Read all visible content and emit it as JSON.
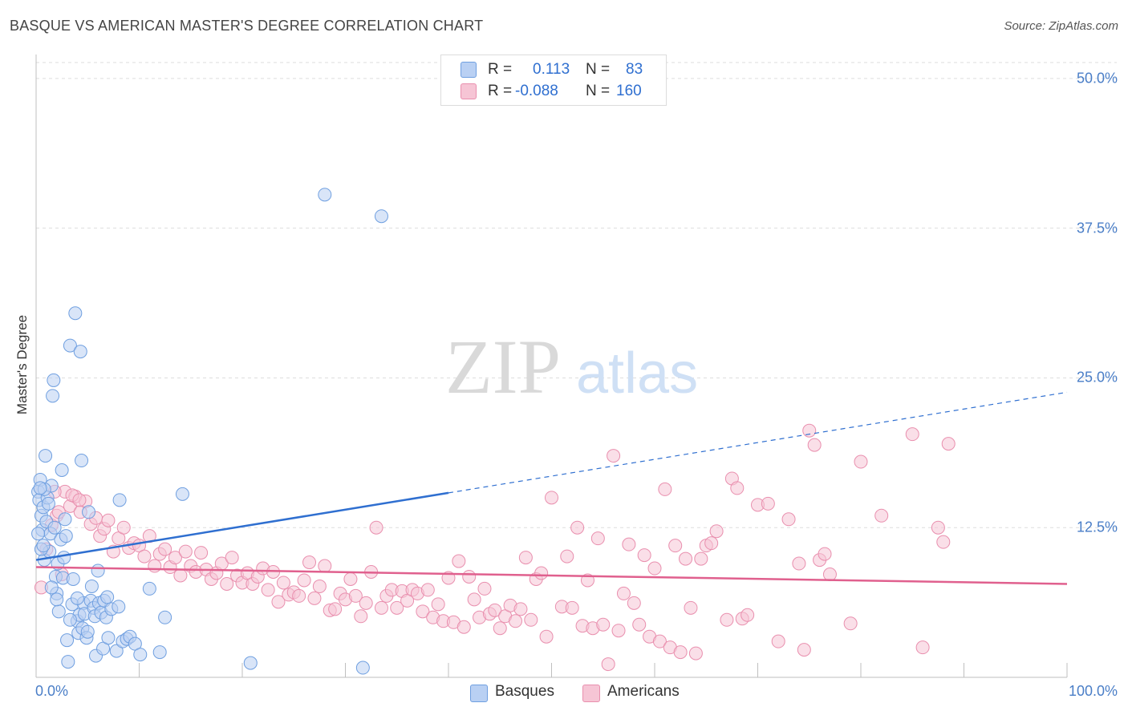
{
  "title": "BASQUE VS AMERICAN MASTER'S DEGREE CORRELATION CHART",
  "source": "Source: ZipAtlas.com",
  "watermark": {
    "zip": "ZIP",
    "atlas": "atlas"
  },
  "chart_data": {
    "type": "scatter",
    "xlabel": "",
    "ylabel": "Master's Degree",
    "xlim": [
      0,
      100
    ],
    "ylim": [
      0,
      52
    ],
    "x_tick_labels": [
      {
        "value": 0,
        "label": "0.0%"
      },
      {
        "value": 100,
        "label": "100.0%"
      }
    ],
    "y_tick_labels": [
      {
        "value": 12.5,
        "label": "12.5%"
      },
      {
        "value": 25,
        "label": "25.0%"
      },
      {
        "value": 37.5,
        "label": "37.5%"
      },
      {
        "value": 50,
        "label": "50.0%"
      }
    ],
    "grid": true,
    "legend_position": "top-center",
    "series": [
      {
        "name": "Basques",
        "color": "#6f9fe0",
        "fill": "#b9d0f3",
        "R": "0.113",
        "N": "83",
        "trend": {
          "x0": 0,
          "y0": 9.8,
          "x1": 40,
          "y1": 15.4,
          "x_end": 100,
          "y_end": 23.8
        },
        "points": [
          [
            0.2,
            15.5
          ],
          [
            0.3,
            14.8
          ],
          [
            0.4,
            16.5
          ],
          [
            0.5,
            13.5
          ],
          [
            0.6,
            12.3
          ],
          [
            0.7,
            14.2
          ],
          [
            0.8,
            9.8
          ],
          [
            0.9,
            18.5
          ],
          [
            1.0,
            13.0
          ],
          [
            1.1,
            15.0
          ],
          [
            1.2,
            14.5
          ],
          [
            1.3,
            10.5
          ],
          [
            1.4,
            12.0
          ],
          [
            1.5,
            16.0
          ],
          [
            1.6,
            23.5
          ],
          [
            1.7,
            24.8
          ],
          [
            1.8,
            12.5
          ],
          [
            1.9,
            8.4
          ],
          [
            2.0,
            7.0
          ],
          [
            2.1,
            9.5
          ],
          [
            2.2,
            5.5
          ],
          [
            2.4,
            11.5
          ],
          [
            2.5,
            17.3
          ],
          [
            2.6,
            8.3
          ],
          [
            2.7,
            10.0
          ],
          [
            2.8,
            13.2
          ],
          [
            2.9,
            11.8
          ],
          [
            3.0,
            3.1
          ],
          [
            3.1,
            1.3
          ],
          [
            3.3,
            27.7
          ],
          [
            3.5,
            6.1
          ],
          [
            3.6,
            8.2
          ],
          [
            3.8,
            30.4
          ],
          [
            4.0,
            4.7
          ],
          [
            4.1,
            3.7
          ],
          [
            4.2,
            5.2
          ],
          [
            4.3,
            27.2
          ],
          [
            4.4,
            18.1
          ],
          [
            4.5,
            4.1
          ],
          [
            4.6,
            6.2
          ],
          [
            4.7,
            5.3
          ],
          [
            4.9,
            3.3
          ],
          [
            5.0,
            3.8
          ],
          [
            5.1,
            13.8
          ],
          [
            5.3,
            6.4
          ],
          [
            5.4,
            7.6
          ],
          [
            5.6,
            5.8
          ],
          [
            5.7,
            5.1
          ],
          [
            5.8,
            1.8
          ],
          [
            6.0,
            8.9
          ],
          [
            6.1,
            6.2
          ],
          [
            6.3,
            5.4
          ],
          [
            6.5,
            2.4
          ],
          [
            6.6,
            6.4
          ],
          [
            6.8,
            5.0
          ],
          [
            6.9,
            6.7
          ],
          [
            7.0,
            3.3
          ],
          [
            7.3,
            5.7
          ],
          [
            7.8,
            2.2
          ],
          [
            8.0,
            5.9
          ],
          [
            8.1,
            14.8
          ],
          [
            8.4,
            3.0
          ],
          [
            8.8,
            3.2
          ],
          [
            9.1,
            3.4
          ],
          [
            9.6,
            2.8
          ],
          [
            10.1,
            1.9
          ],
          [
            11.0,
            7.4
          ],
          [
            12.0,
            2.1
          ],
          [
            12.5,
            5.0
          ],
          [
            14.2,
            15.3
          ],
          [
            20.8,
            1.2
          ],
          [
            28.0,
            40.3
          ],
          [
            31.7,
            0.8
          ],
          [
            33.5,
            38.5
          ],
          [
            0.2,
            12.0
          ],
          [
            0.5,
            10.7
          ],
          [
            0.8,
            15.7
          ],
          [
            1.5,
            7.5
          ],
          [
            2.0,
            6.5
          ],
          [
            3.3,
            4.8
          ],
          [
            4.0,
            6.6
          ],
          [
            0.4,
            15.8
          ],
          [
            0.7,
            11.0
          ]
        ]
      },
      {
        "name": "Americans",
        "color": "#e98fae",
        "fill": "#f6c5d5",
        "R": "-0.088",
        "N": "160",
        "trend": {
          "x0": 0,
          "y0": 9.2,
          "x1": 100,
          "y1": 7.8
        },
        "points": [
          [
            0.5,
            7.5
          ],
          [
            1.0,
            10.7
          ],
          [
            1.5,
            12.7
          ],
          [
            2.0,
            13.5
          ],
          [
            2.5,
            8.6
          ],
          [
            2.8,
            15.5
          ],
          [
            3.3,
            14.3
          ],
          [
            3.8,
            15.1
          ],
          [
            4.3,
            13.8
          ],
          [
            4.8,
            14.7
          ],
          [
            5.3,
            12.8
          ],
          [
            5.8,
            13.3
          ],
          [
            6.2,
            11.8
          ],
          [
            6.6,
            12.4
          ],
          [
            7.0,
            13.1
          ],
          [
            7.5,
            10.5
          ],
          [
            8.0,
            11.6
          ],
          [
            8.5,
            12.5
          ],
          [
            9.0,
            10.8
          ],
          [
            9.5,
            11.2
          ],
          [
            10.0,
            11.0
          ],
          [
            10.5,
            10.1
          ],
          [
            11.0,
            11.8
          ],
          [
            11.5,
            9.3
          ],
          [
            12.0,
            10.3
          ],
          [
            12.5,
            10.7
          ],
          [
            13.0,
            9.2
          ],
          [
            13.5,
            10.0
          ],
          [
            14.0,
            8.5
          ],
          [
            14.5,
            10.5
          ],
          [
            15.0,
            9.3
          ],
          [
            15.5,
            8.8
          ],
          [
            16.0,
            10.4
          ],
          [
            16.5,
            9.0
          ],
          [
            17.0,
            8.2
          ],
          [
            17.5,
            8.7
          ],
          [
            18.0,
            9.5
          ],
          [
            18.5,
            7.8
          ],
          [
            19.0,
            10.0
          ],
          [
            19.5,
            8.5
          ],
          [
            20.0,
            7.9
          ],
          [
            20.5,
            8.7
          ],
          [
            21.0,
            7.8
          ],
          [
            21.5,
            8.4
          ],
          [
            22.0,
            9.1
          ],
          [
            22.5,
            7.3
          ],
          [
            23.0,
            8.8
          ],
          [
            23.5,
            6.3
          ],
          [
            24.0,
            7.9
          ],
          [
            24.5,
            6.9
          ],
          [
            25.0,
            7.1
          ],
          [
            25.5,
            6.8
          ],
          [
            26.0,
            8.1
          ],
          [
            26.5,
            9.6
          ],
          [
            27.0,
            6.6
          ],
          [
            27.5,
            7.6
          ],
          [
            28.0,
            9.3
          ],
          [
            28.5,
            5.6
          ],
          [
            29.0,
            5.7
          ],
          [
            29.5,
            7.0
          ],
          [
            30.0,
            6.5
          ],
          [
            30.5,
            8.2
          ],
          [
            31.0,
            6.8
          ],
          [
            31.5,
            5.1
          ],
          [
            32.0,
            6.2
          ],
          [
            32.5,
            8.8
          ],
          [
            33.0,
            12.5
          ],
          [
            33.5,
            5.8
          ],
          [
            34.0,
            6.8
          ],
          [
            34.5,
            7.3
          ],
          [
            35.0,
            5.8
          ],
          [
            35.5,
            7.2
          ],
          [
            36.0,
            6.4
          ],
          [
            36.5,
            7.3
          ],
          [
            37.0,
            7.0
          ],
          [
            37.5,
            5.5
          ],
          [
            38.0,
            7.3
          ],
          [
            38.5,
            5.0
          ],
          [
            39.0,
            6.1
          ],
          [
            39.5,
            4.7
          ],
          [
            40.0,
            8.3
          ],
          [
            40.5,
            4.6
          ],
          [
            41.0,
            9.7
          ],
          [
            41.5,
            4.2
          ],
          [
            42.0,
            8.4
          ],
          [
            42.5,
            6.5
          ],
          [
            43.0,
            5.0
          ],
          [
            43.5,
            7.4
          ],
          [
            44.0,
            5.3
          ],
          [
            44.5,
            5.6
          ],
          [
            45.0,
            4.1
          ],
          [
            45.5,
            5.1
          ],
          [
            46.0,
            6.0
          ],
          [
            46.5,
            4.7
          ],
          [
            47.0,
            5.7
          ],
          [
            47.5,
            10.0
          ],
          [
            48.0,
            4.8
          ],
          [
            48.5,
            8.2
          ],
          [
            49.0,
            8.7
          ],
          [
            49.5,
            3.4
          ],
          [
            50.0,
            15.0
          ],
          [
            51.0,
            5.9
          ],
          [
            51.5,
            10.1
          ],
          [
            52.0,
            5.8
          ],
          [
            52.5,
            12.5
          ],
          [
            53.0,
            4.3
          ],
          [
            53.5,
            8.1
          ],
          [
            54.0,
            4.1
          ],
          [
            54.5,
            11.6
          ],
          [
            55.0,
            4.4
          ],
          [
            55.5,
            1.1
          ],
          [
            56.0,
            18.5
          ],
          [
            56.5,
            3.9
          ],
          [
            57.0,
            7.0
          ],
          [
            57.5,
            11.1
          ],
          [
            58.0,
            6.2
          ],
          [
            58.5,
            4.4
          ],
          [
            59.0,
            10.2
          ],
          [
            59.5,
            3.4
          ],
          [
            60.0,
            9.1
          ],
          [
            60.5,
            3.0
          ],
          [
            61.0,
            15.7
          ],
          [
            61.5,
            2.5
          ],
          [
            62.0,
            11.0
          ],
          [
            62.5,
            2.1
          ],
          [
            63.0,
            9.9
          ],
          [
            63.5,
            5.8
          ],
          [
            64.0,
            2.0
          ],
          [
            64.5,
            9.9
          ],
          [
            65.0,
            11.0
          ],
          [
            65.5,
            11.2
          ],
          [
            66.0,
            12.2
          ],
          [
            67.0,
            4.8
          ],
          [
            67.5,
            16.6
          ],
          [
            68.0,
            15.8
          ],
          [
            68.5,
            4.9
          ],
          [
            69.0,
            5.2
          ],
          [
            70.0,
            14.4
          ],
          [
            71.0,
            14.5
          ],
          [
            72.0,
            3.0
          ],
          [
            73.0,
            13.2
          ],
          [
            74.0,
            9.5
          ],
          [
            74.5,
            2.3
          ],
          [
            75.0,
            20.6
          ],
          [
            75.5,
            19.4
          ],
          [
            76.0,
            9.8
          ],
          [
            76.5,
            10.3
          ],
          [
            77.0,
            8.6
          ],
          [
            79.0,
            4.5
          ],
          [
            80.0,
            18.0
          ],
          [
            82.0,
            13.5
          ],
          [
            85.0,
            20.3
          ],
          [
            86.0,
            2.5
          ],
          [
            87.5,
            12.5
          ],
          [
            88.0,
            11.3
          ],
          [
            88.5,
            19.5
          ],
          [
            1.8,
            15.5
          ],
          [
            2.2,
            13.8
          ],
          [
            3.5,
            15.2
          ],
          [
            4.2,
            14.8
          ]
        ]
      }
    ]
  }
}
